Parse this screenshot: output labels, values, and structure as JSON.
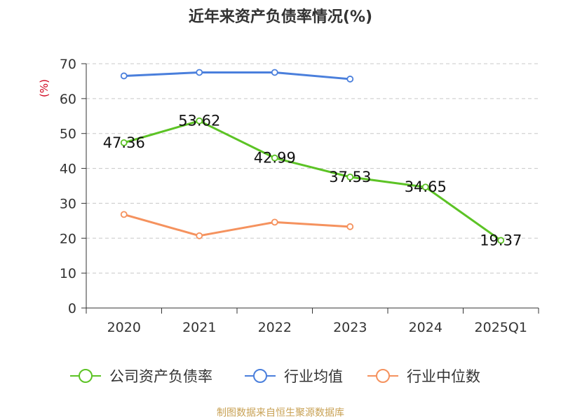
{
  "title": "近年来资产负债率情况(%)",
  "source": "制图数据来自恒生聚源数据库",
  "colors": {
    "company": "#5cc325",
    "industry_avg": "#4a7fdc",
    "industry_median": "#f5925e",
    "grid": "#c8c8c8",
    "axis": "#333333",
    "unit": "#d0021b"
  },
  "chart_data": {
    "type": "line",
    "title": "近年来资产负债率情况(%)",
    "ylabel": "(%)",
    "ylim": [
      0,
      70
    ],
    "yticks": [
      0,
      10,
      20,
      30,
      40,
      50,
      60,
      70
    ],
    "grid": "horizontal dashed",
    "legend_position": "bottom",
    "categories": [
      "2020",
      "2021",
      "2022",
      "2023",
      "2024",
      "2025Q1"
    ],
    "series": [
      {
        "name": "公司资产负债率",
        "values": [
          47.36,
          53.62,
          42.99,
          37.53,
          34.65,
          19.37
        ],
        "labels": [
          "47.36",
          "53.62",
          "42.99",
          "37.53",
          "34.65",
          "19.37"
        ]
      },
      {
        "name": "行业均值",
        "values": [
          66.5,
          67.5,
          67.5,
          65.6,
          null,
          null
        ]
      },
      {
        "name": "行业中位数",
        "values": [
          26.8,
          20.7,
          24.6,
          23.3,
          null,
          null
        ]
      }
    ]
  }
}
